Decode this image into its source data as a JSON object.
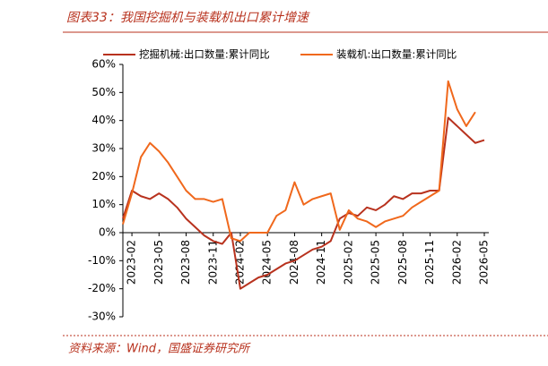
{
  "chart_data": {
    "type": "line",
    "title": "图表33：我国挖掘机与装载机出口累计增速",
    "source": "资料来源：Wind，国盛证券研究所",
    "categories": [
      null,
      "2023-02",
      null,
      null,
      "2023-05",
      null,
      null,
      "2023-08",
      null,
      null,
      "2023-11",
      null,
      null,
      "2024-02",
      null,
      null,
      "2024-05",
      null,
      null,
      "2024-08",
      null,
      null,
      "2024-11",
      null,
      null,
      "2025-02",
      null,
      null,
      "2025-05",
      null,
      null,
      "2025-08",
      null,
      null,
      "2025-11",
      null,
      null,
      "2026-02",
      null,
      null,
      "2026-05"
    ],
    "series": [
      {
        "name": "挖掘机械:出口数量:累计同比",
        "color": "#b8321e",
        "values": [
          5,
          15,
          13,
          12,
          14,
          12,
          9,
          5,
          2,
          -1,
          -3,
          -4,
          0,
          -20,
          -18,
          -16,
          -15,
          -13,
          -11,
          -10,
          -8,
          -6,
          -5,
          -3,
          5,
          7,
          6,
          9,
          8,
          10,
          13,
          12,
          14,
          14,
          15,
          15,
          41,
          38,
          35,
          32,
          33
        ]
      },
      {
        "name": "装载机:出口数量:累计同比",
        "color": "#f0681c",
        "values": [
          3,
          14,
          27,
          32,
          29,
          25,
          20,
          15,
          12,
          12,
          11,
          12,
          -2,
          -3,
          0,
          0,
          0,
          6,
          8,
          18,
          10,
          12,
          13,
          14,
          1,
          8,
          5,
          4,
          2,
          4,
          5,
          6,
          9,
          11,
          13,
          15,
          54,
          44,
          38,
          43,
          null
        ]
      }
    ],
    "ylim": [
      -30,
      60
    ],
    "yticks": [
      {
        "value": -30,
        "label": "-30%"
      },
      {
        "value": -20,
        "label": "-20%"
      },
      {
        "value": -10,
        "label": "-10%"
      },
      {
        "value": 0,
        "label": "0%"
      },
      {
        "value": 10,
        "label": "10%"
      },
      {
        "value": 20,
        "label": "20%"
      },
      {
        "value": 30,
        "label": "30%"
      },
      {
        "value": 40,
        "label": "40%"
      },
      {
        "value": 50,
        "label": "50%"
      },
      {
        "value": 60,
        "label": "60%"
      }
    ],
    "grid": false
  }
}
